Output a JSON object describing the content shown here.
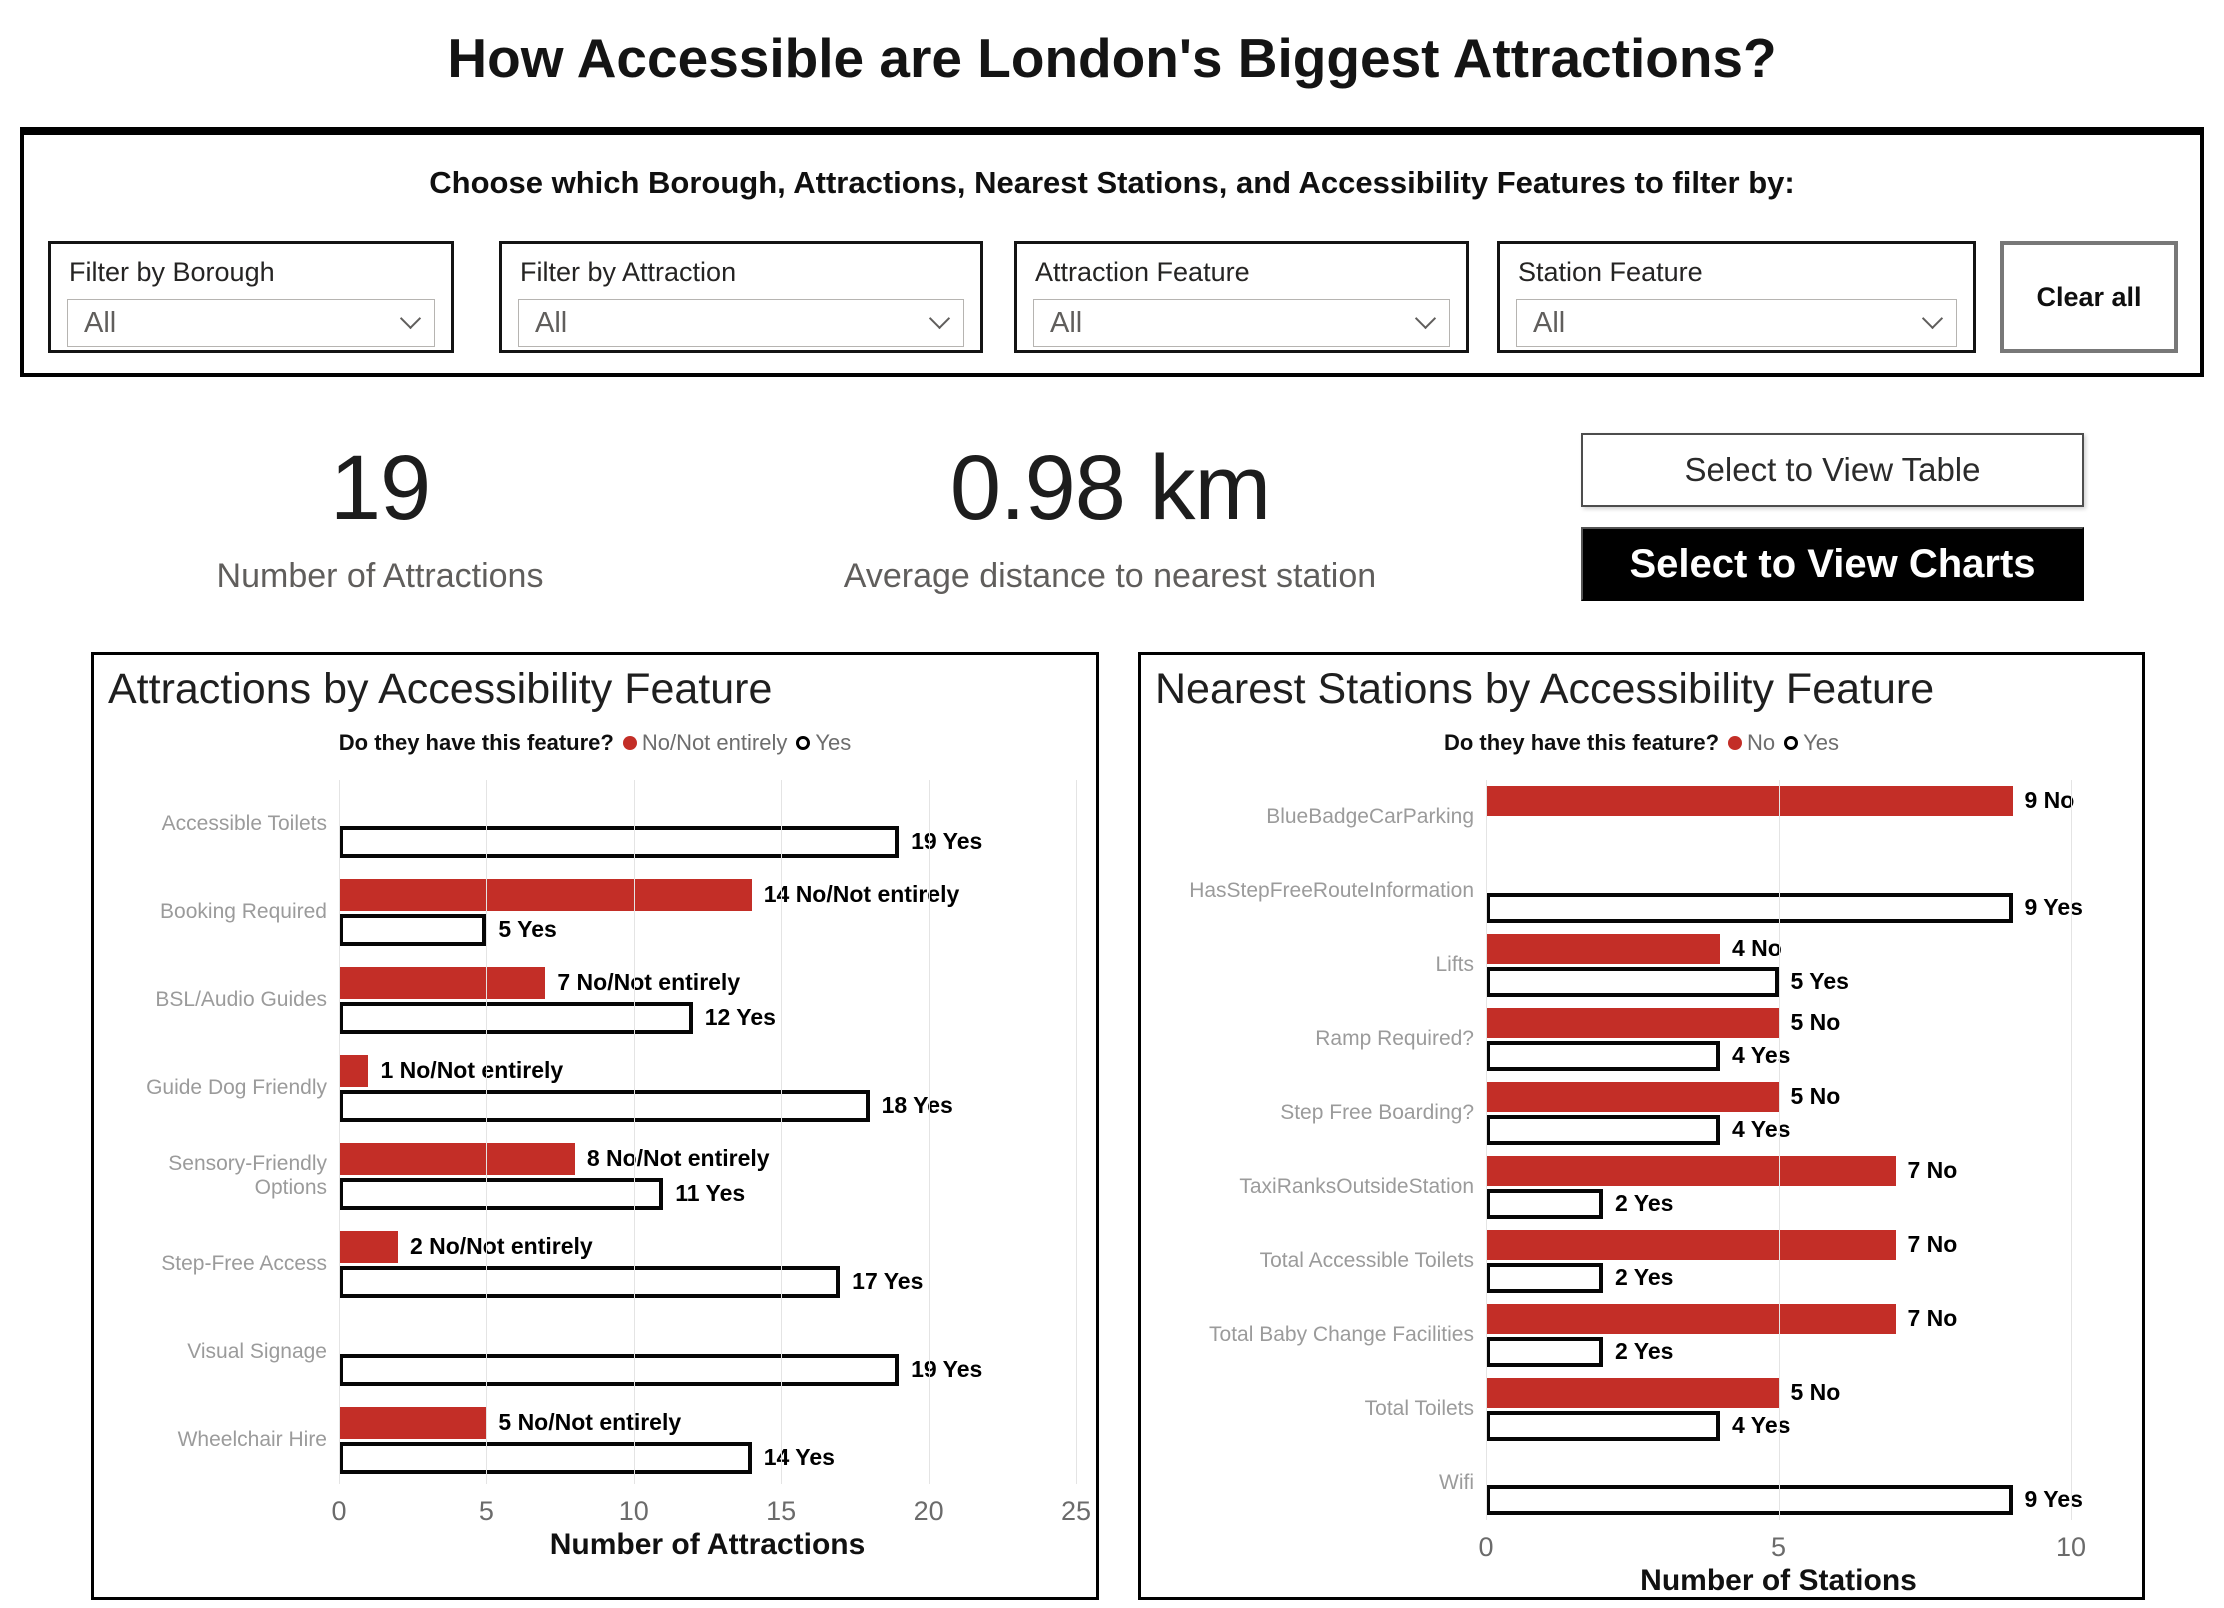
{
  "page": {
    "title": "How Accessible are London's Biggest Attractions?"
  },
  "colors": {
    "accent_red": "#C32E27",
    "yes_fill": "#FFFFFF",
    "yes_border": "#000000"
  },
  "filters": {
    "heading": "Choose which Borough, Attractions, Nearest Stations, and Accessibility Features to filter by:",
    "clear_label": "Clear all",
    "dropdowns": [
      {
        "label": "Filter by Borough",
        "value": "All"
      },
      {
        "label": "Filter by Attraction",
        "value": "All"
      },
      {
        "label": "Attraction Feature",
        "value": "All"
      },
      {
        "label": "Station Feature",
        "value": "All"
      }
    ]
  },
  "kpis": [
    {
      "value": "19",
      "label": "Number of Attractions"
    },
    {
      "value": "0.98 km",
      "label": "Average distance to nearest station"
    }
  ],
  "view_buttons": [
    {
      "label": "Select to View Table",
      "style": "light"
    },
    {
      "label": "Select to View Charts",
      "style": "dark"
    }
  ],
  "chart_data": [
    {
      "type": "bar",
      "orientation": "horizontal",
      "title": "Attractions by Accessibility Feature",
      "legend_title": "Do they have this feature?",
      "legend_position": "top-center",
      "grid": true,
      "categories": [
        "Accessible Toilets",
        "Booking Required",
        "BSL/Audio Guides",
        "Guide Dog Friendly",
        "Sensory-Friendly Options",
        "Step-Free Access",
        "Visual Signage",
        "Wheelchair Hire"
      ],
      "series": [
        {
          "name": "No/Not entirely",
          "color": "#C32E27",
          "values": [
            null,
            14,
            7,
            1,
            8,
            2,
            null,
            5
          ]
        },
        {
          "name": "Yes",
          "color": "#FFFFFF",
          "values": [
            19,
            5,
            12,
            18,
            11,
            17,
            19,
            14
          ]
        }
      ],
      "xlabel": "Number of Attractions",
      "xlim": [
        0,
        25
      ],
      "xticks": [
        0,
        5,
        10,
        15,
        20,
        25
      ],
      "data_label_format": "{value} {series}"
    },
    {
      "type": "bar",
      "orientation": "horizontal",
      "title": "Nearest Stations by Accessibility Feature",
      "legend_title": "Do they have this feature?",
      "legend_position": "top-center",
      "grid": true,
      "categories": [
        "BlueBadgeCarParking",
        "HasStepFreeRouteInformation",
        "Lifts",
        "Ramp Required?",
        "Step Free Boarding?",
        "TaxiRanksOutsideStation",
        "Total Accessible Toilets",
        "Total Baby Change Facilities",
        "Total Toilets",
        "Wifi"
      ],
      "series": [
        {
          "name": "No",
          "color": "#C32E27",
          "values": [
            9,
            null,
            4,
            5,
            5,
            7,
            7,
            7,
            5,
            null
          ]
        },
        {
          "name": "Yes",
          "color": "#FFFFFF",
          "values": [
            null,
            9,
            5,
            4,
            4,
            2,
            2,
            2,
            4,
            9
          ]
        }
      ],
      "xlabel": "Number of Stations",
      "xlim": [
        0,
        10
      ],
      "xticks": [
        0,
        5,
        10
      ],
      "data_label_format": "{value} {series}"
    }
  ]
}
